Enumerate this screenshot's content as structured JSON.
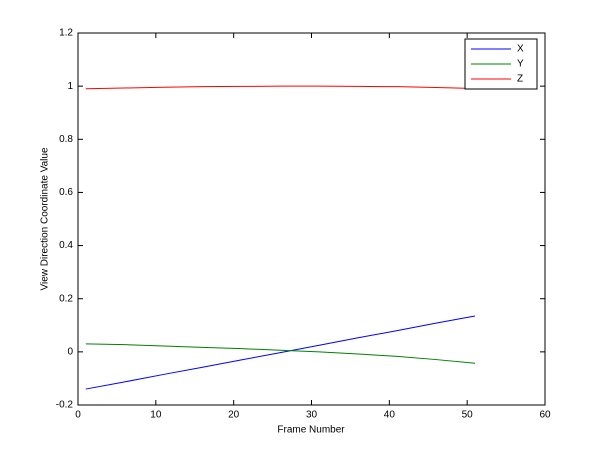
{
  "chart_data": {
    "type": "line",
    "xlabel": "Frame Number",
    "ylabel": "View Direction Coordinate Value",
    "x": [
      1,
      6,
      11,
      16,
      21,
      26,
      31,
      36,
      41,
      46,
      51
    ],
    "series": [
      {
        "name": "X",
        "color": "#0000ff",
        "values": [
          -0.14,
          -0.113,
          -0.085,
          -0.058,
          -0.03,
          -0.003,
          0.025,
          0.053,
          0.08,
          0.108,
          0.135
        ]
      },
      {
        "name": "Y",
        "color": "#008000",
        "values": [
          0.03,
          0.027,
          0.022,
          0.017,
          0.012,
          0.006,
          0.0,
          -0.008,
          -0.017,
          -0.029,
          -0.043
        ]
      },
      {
        "name": "Z",
        "color": "#ff0000",
        "values": [
          0.99,
          0.993,
          0.996,
          0.998,
          0.999,
          1.0,
          1.0,
          0.999,
          0.998,
          0.995,
          0.991
        ]
      }
    ],
    "xlim": [
      0,
      60
    ],
    "xticks": [
      0,
      10,
      20,
      30,
      40,
      50,
      60
    ],
    "ylim": [
      -0.2,
      1.2
    ],
    "yticks": [
      -0.2,
      0,
      0.2,
      0.4,
      0.6,
      0.8,
      1,
      1.2
    ],
    "grid": false,
    "legend": "top-right"
  }
}
